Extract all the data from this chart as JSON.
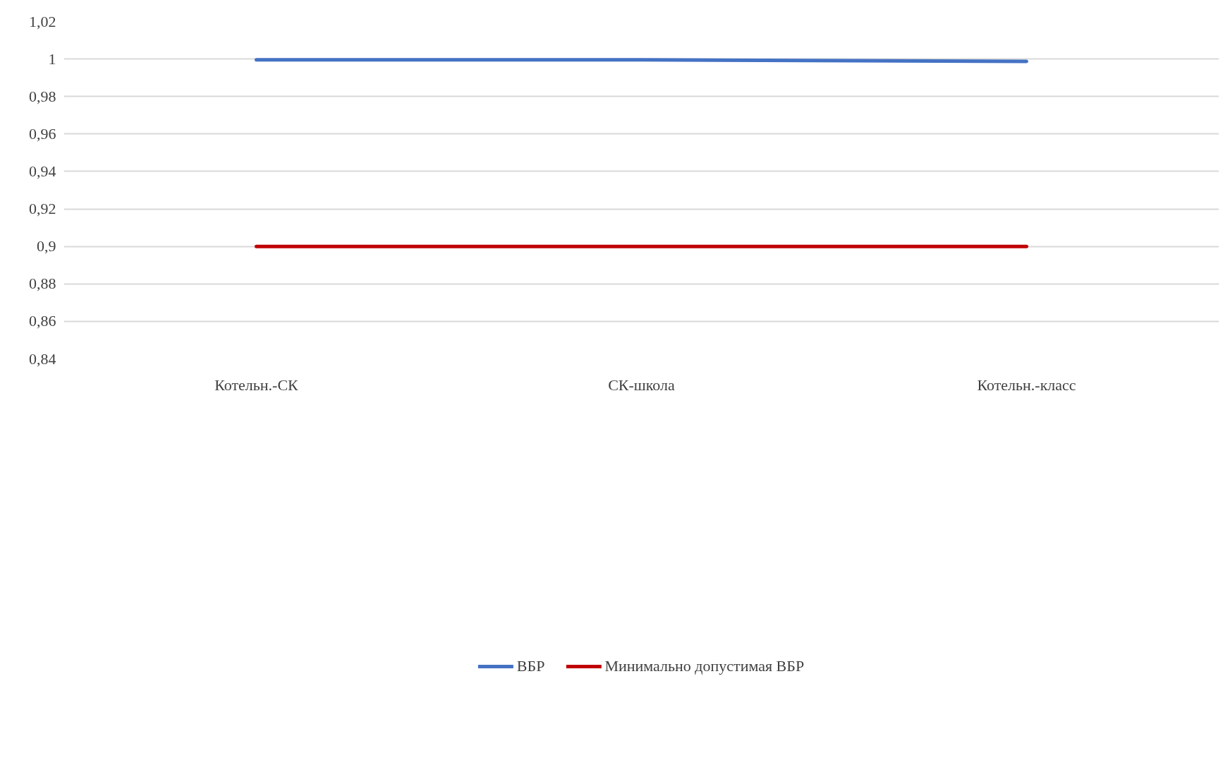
{
  "chart_data": {
    "type": "line",
    "categories": [
      "Котельн.-СК",
      "СК-школа",
      "Котельн.-класс"
    ],
    "series": [
      {
        "name": "ВБР",
        "color": "#4472c4",
        "values": [
          0.9996,
          0.9996,
          0.9987
        ]
      },
      {
        "name": "Минимально допустимая ВБР",
        "color": "#c00000",
        "values": [
          0.9,
          0.9,
          0.9
        ]
      }
    ],
    "ylim": [
      0.84,
      1.02
    ],
    "yticks": [
      {
        "value": 0.84,
        "label": "0,84"
      },
      {
        "value": 0.86,
        "label": "0,86"
      },
      {
        "value": 0.88,
        "label": "0,88"
      },
      {
        "value": 0.9,
        "label": "0,9"
      },
      {
        "value": 0.92,
        "label": "0,92"
      },
      {
        "value": 0.94,
        "label": "0,94"
      },
      {
        "value": 0.96,
        "label": "0,96"
      },
      {
        "value": 0.98,
        "label": "0,98"
      },
      {
        "value": 1.0,
        "label": "1"
      },
      {
        "value": 1.02,
        "label": "1,02"
      }
    ],
    "grid": "y",
    "legend": "bottom",
    "marker": "none",
    "line_style": "solid"
  }
}
